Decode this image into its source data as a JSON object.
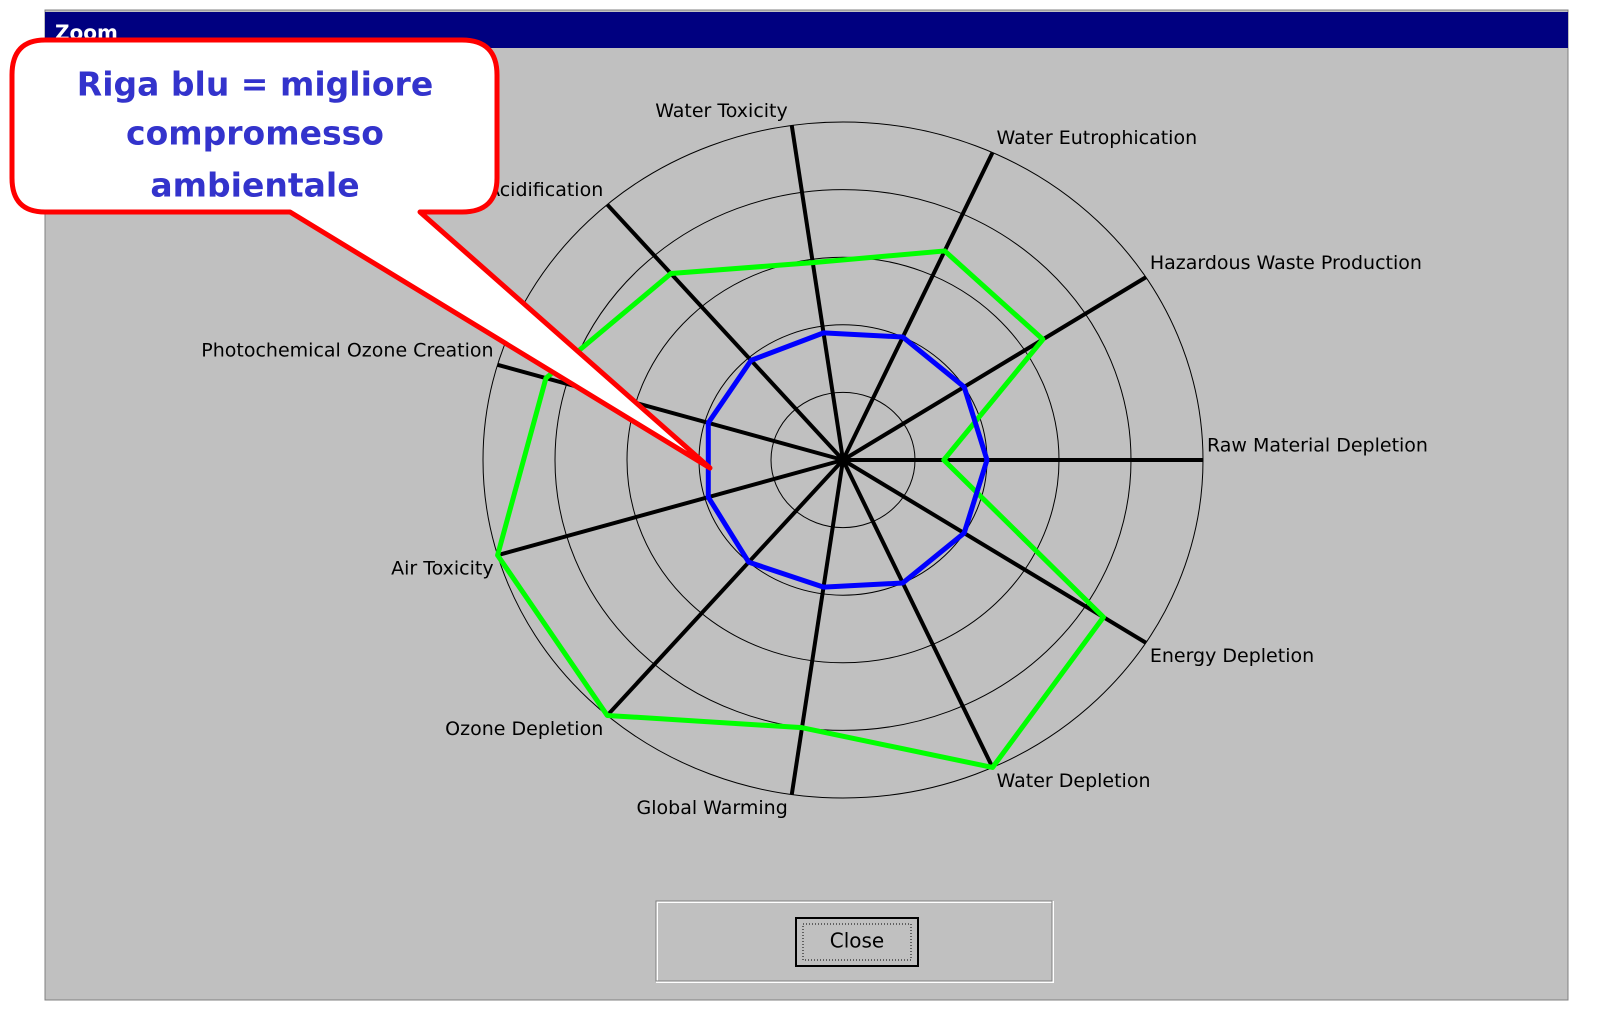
{
  "window": {
    "title": "Zoom"
  },
  "callout": {
    "lines": [
      "Riga blu = migliore",
      "compromesso",
      "ambientale"
    ]
  },
  "chart_data": {
    "type": "radar",
    "categories": [
      "Raw Material Depletion",
      "Hazardous Waste Production",
      "Water Eutrophication",
      "Water Toxicity",
      "Acidification",
      "Photochemical Ozone Creation",
      "Air Toxicity",
      "Ozone Depletion",
      "Global Warming",
      "Water Depletion",
      "Energy Depletion"
    ],
    "series": [
      {
        "color": "#00ff00",
        "values": [
          1.4,
          3.3,
          3.4,
          2.95,
          3.65,
          4.3,
          5,
          5,
          4,
          5,
          4.3
        ]
      },
      {
        "color": "#0000ff",
        "values": [
          2,
          2,
          2,
          1.9,
          1.95,
          1.95,
          1.95,
          2,
          1.9,
          2,
          2
        ]
      }
    ],
    "rlim": [
      0,
      5
    ],
    "rticks": [
      1,
      2,
      3,
      4,
      5
    ]
  },
  "button": {
    "label": "Close"
  }
}
